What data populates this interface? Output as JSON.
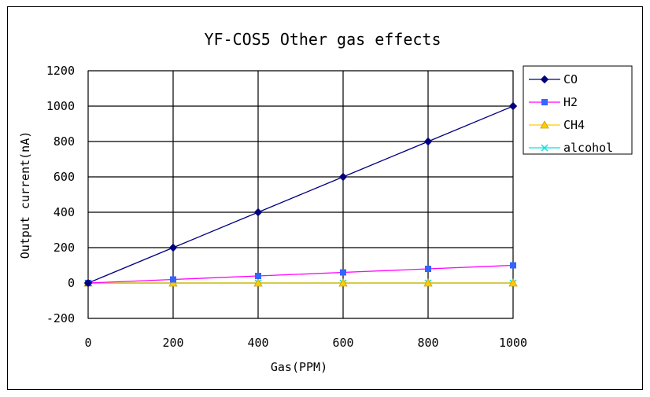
{
  "chart_data": {
    "type": "line",
    "title": "YF-COS5 Other gas effects",
    "xlabel": "Gas(PPM)",
    "ylabel": "Output current(nA)",
    "x": [
      0,
      200,
      400,
      600,
      800,
      1000
    ],
    "xlim": [
      0,
      1000
    ],
    "ylim": [
      -200,
      1200
    ],
    "x_ticks": [
      "0",
      "200",
      "400",
      "600",
      "800",
      "1000"
    ],
    "y_ticks": [
      "-200",
      "0",
      "200",
      "400",
      "600",
      "800",
      "1000",
      "1200"
    ],
    "grid": true,
    "legend_position": "right",
    "series": [
      {
        "name": "CO",
        "values": [
          0,
          200,
          400,
          600,
          800,
          1000
        ],
        "line_color": "#000080",
        "marker": "diamond",
        "marker_color": "#000080"
      },
      {
        "name": "H2",
        "values": [
          0,
          20,
          40,
          60,
          80,
          100
        ],
        "line_color": "#ff00ff",
        "marker": "square",
        "marker_color": "#3366ff"
      },
      {
        "name": "CH4",
        "values": [
          0,
          0,
          0,
          0,
          0,
          0
        ],
        "line_color": "#ffcc00",
        "marker": "triangle",
        "marker_color": "#ffcc00"
      },
      {
        "name": "alcohol",
        "values": [
          0,
          0,
          0,
          0,
          0,
          0
        ],
        "line_color": "#00e5e5",
        "marker": "x",
        "marker_color": "#00e5e5"
      }
    ]
  }
}
